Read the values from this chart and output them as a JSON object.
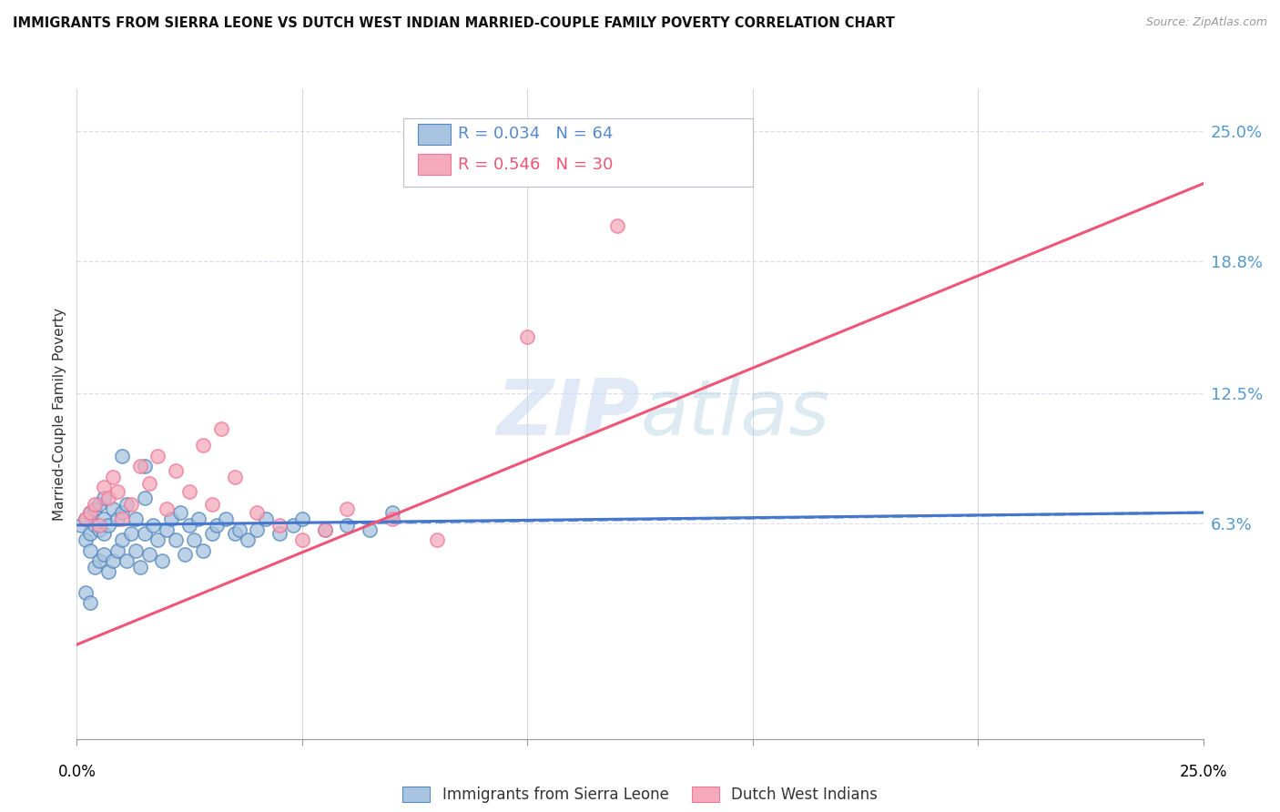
{
  "title": "IMMIGRANTS FROM SIERRA LEONE VS DUTCH WEST INDIAN MARRIED-COUPLE FAMILY POVERTY CORRELATION CHART",
  "source": "Source: ZipAtlas.com",
  "ylabel": "Married-Couple Family Poverty",
  "ytick_labels": [
    "6.3%",
    "12.5%",
    "18.8%",
    "25.0%"
  ],
  "ytick_values": [
    0.063,
    0.125,
    0.188,
    0.25
  ],
  "xlim": [
    0.0,
    0.25
  ],
  "ylim": [
    -0.04,
    0.27
  ],
  "legend1_r": "0.034",
  "legend1_n": "64",
  "legend2_r": "0.546",
  "legend2_n": "30",
  "color_blue": "#A8C4E0",
  "color_pink": "#F5AABB",
  "color_blue_edge": "#5588BB",
  "color_pink_edge": "#EE7799",
  "color_blue_line": "#4477CC",
  "color_pink_line": "#EE5577",
  "watermark_color": "#C8D8EE",
  "legend_label1": "Immigrants from Sierra Leone",
  "legend_label2": "Dutch West Indians",
  "grid_color": "#DDDDEE",
  "background_color": "#FFFFFF",
  "blue_line_x0": 0.0,
  "blue_line_y0": 0.062,
  "blue_line_x1": 0.25,
  "blue_line_y1": 0.068,
  "pink_line_x0": 0.0,
  "pink_line_y0": 0.005,
  "pink_line_x1": 0.25,
  "pink_line_y1": 0.225,
  "blue_scatter_x": [
    0.001,
    0.002,
    0.002,
    0.003,
    0.003,
    0.003,
    0.004,
    0.004,
    0.004,
    0.005,
    0.005,
    0.005,
    0.006,
    0.006,
    0.006,
    0.006,
    0.007,
    0.007,
    0.008,
    0.008,
    0.009,
    0.009,
    0.01,
    0.01,
    0.011,
    0.011,
    0.012,
    0.013,
    0.013,
    0.014,
    0.015,
    0.015,
    0.016,
    0.017,
    0.018,
    0.019,
    0.02,
    0.021,
    0.022,
    0.023,
    0.024,
    0.025,
    0.026,
    0.027,
    0.028,
    0.03,
    0.031,
    0.033,
    0.035,
    0.036,
    0.038,
    0.04,
    0.042,
    0.045,
    0.048,
    0.05,
    0.055,
    0.06,
    0.065,
    0.07,
    0.002,
    0.003,
    0.01,
    0.015
  ],
  "blue_scatter_y": [
    0.062,
    0.055,
    0.065,
    0.05,
    0.058,
    0.068,
    0.042,
    0.062,
    0.07,
    0.045,
    0.06,
    0.072,
    0.048,
    0.058,
    0.065,
    0.075,
    0.04,
    0.062,
    0.045,
    0.07,
    0.05,
    0.065,
    0.055,
    0.068,
    0.045,
    0.072,
    0.058,
    0.05,
    0.065,
    0.042,
    0.058,
    0.075,
    0.048,
    0.062,
    0.055,
    0.045,
    0.06,
    0.065,
    0.055,
    0.068,
    0.048,
    0.062,
    0.055,
    0.065,
    0.05,
    0.058,
    0.062,
    0.065,
    0.058,
    0.06,
    0.055,
    0.06,
    0.065,
    0.058,
    0.062,
    0.065,
    0.06,
    0.062,
    0.06,
    0.068,
    0.03,
    0.025,
    0.095,
    0.09
  ],
  "pink_scatter_x": [
    0.002,
    0.003,
    0.004,
    0.005,
    0.006,
    0.007,
    0.008,
    0.009,
    0.01,
    0.012,
    0.014,
    0.016,
    0.018,
    0.02,
    0.022,
    0.025,
    0.028,
    0.03,
    0.032,
    0.035,
    0.04,
    0.045,
    0.05,
    0.055,
    0.06,
    0.07,
    0.08,
    0.1,
    0.12,
    0.14
  ],
  "pink_scatter_y": [
    0.065,
    0.068,
    0.072,
    0.062,
    0.08,
    0.075,
    0.085,
    0.078,
    0.065,
    0.072,
    0.09,
    0.082,
    0.095,
    0.07,
    0.088,
    0.078,
    0.1,
    0.072,
    0.108,
    0.085,
    0.068,
    0.062,
    0.055,
    0.06,
    0.07,
    0.065,
    0.055,
    0.152,
    0.205,
    0.245
  ]
}
